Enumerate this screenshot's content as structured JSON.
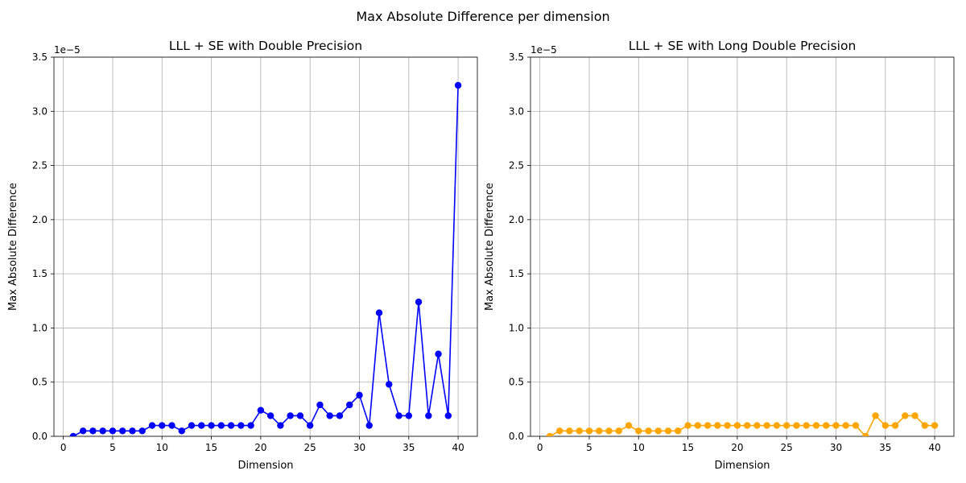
{
  "suptitle": "Max Absolute Difference per dimension",
  "chart_data": [
    {
      "type": "line",
      "title": "LLL + SE with Double Precision",
      "xlabel": "Dimension",
      "ylabel": "Max Absolute Difference",
      "offset_label": "1e−5",
      "xlim": [
        -0.95,
        41.95
      ],
      "ylim": [
        0,
        3.5
      ],
      "xticks": [
        0,
        5,
        10,
        15,
        20,
        25,
        30,
        35,
        40
      ],
      "xtick_labels": [
        "0",
        "5",
        "10",
        "15",
        "20",
        "25",
        "30",
        "35",
        "40"
      ],
      "yticks": [
        0,
        0.5,
        1.0,
        1.5,
        2.0,
        2.5,
        3.0,
        3.5
      ],
      "ytick_labels": [
        "0.0",
        "0.5",
        "1.0",
        "1.5",
        "2.0",
        "2.5",
        "3.0",
        "3.5"
      ],
      "grid": true,
      "color": "#0000ff",
      "marker": "circle",
      "series": [
        {
          "x": [
            1,
            2,
            3,
            4,
            5,
            6,
            7,
            8,
            9,
            10,
            11,
            12,
            13,
            14,
            15,
            16,
            17,
            18,
            19,
            20,
            21,
            22,
            23,
            24,
            25,
            26,
            27,
            28,
            29,
            30,
            31,
            32,
            33,
            34,
            35,
            36,
            37,
            38,
            39,
            40
          ],
          "values": [
            0,
            0.05,
            0.05,
            0.05,
            0.05,
            0.05,
            0.05,
            0.05,
            0.1,
            0.1,
            0.1,
            0.05,
            0.1,
            0.1,
            0.1,
            0.1,
            0.1,
            0.1,
            0.1,
            0.24,
            0.19,
            0.1,
            0.19,
            0.19,
            0.1,
            0.29,
            0.19,
            0.19,
            0.29,
            0.38,
            0.1,
            1.14,
            0.48,
            0.19,
            0.19,
            1.24,
            0.19,
            0.76,
            0.19,
            3.24
          ]
        }
      ]
    },
    {
      "type": "line",
      "title": "LLL + SE with Long Double Precision",
      "xlabel": "Dimension",
      "ylabel": "Max Absolute Difference",
      "offset_label": "1e−5",
      "xlim": [
        -0.95,
        41.95
      ],
      "ylim": [
        0,
        3.5
      ],
      "xticks": [
        0,
        5,
        10,
        15,
        20,
        25,
        30,
        35,
        40
      ],
      "xtick_labels": [
        "0",
        "5",
        "10",
        "15",
        "20",
        "25",
        "30",
        "35",
        "40"
      ],
      "yticks": [
        0,
        0.5,
        1.0,
        1.5,
        2.0,
        2.5,
        3.0,
        3.5
      ],
      "ytick_labels": [
        "0.0",
        "0.5",
        "1.0",
        "1.5",
        "2.0",
        "2.5",
        "3.0",
        "3.5"
      ],
      "grid": true,
      "color": "#ffa500",
      "marker": "circle",
      "series": [
        {
          "x": [
            1,
            2,
            3,
            4,
            5,
            6,
            7,
            8,
            9,
            10,
            11,
            12,
            13,
            14,
            15,
            16,
            17,
            18,
            19,
            20,
            21,
            22,
            23,
            24,
            25,
            26,
            27,
            28,
            29,
            30,
            31,
            32,
            33,
            34,
            35,
            36,
            37,
            38,
            39,
            40
          ],
          "values": [
            0,
            0.05,
            0.05,
            0.05,
            0.05,
            0.05,
            0.05,
            0.05,
            0.1,
            0.05,
            0.05,
            0.05,
            0.05,
            0.05,
            0.1,
            0.1,
            0.1,
            0.1,
            0.1,
            0.1,
            0.1,
            0.1,
            0.1,
            0.1,
            0.1,
            0.1,
            0.1,
            0.1,
            0.1,
            0.1,
            0.1,
            0.1,
            0,
            0.19,
            0.1,
            0.1,
            0.19,
            0.19,
            0.1,
            0.1
          ]
        }
      ]
    }
  ]
}
